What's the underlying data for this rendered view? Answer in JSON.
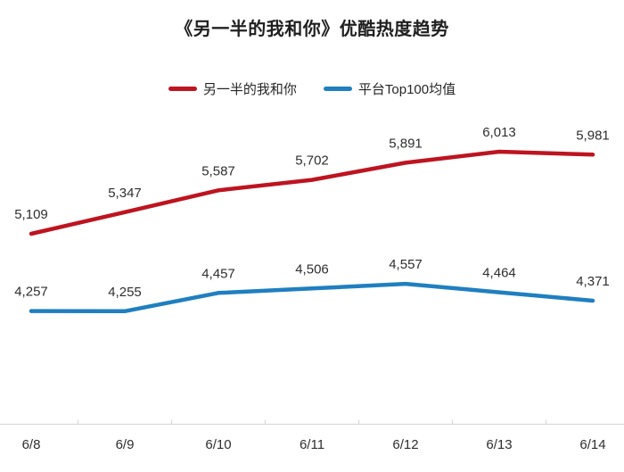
{
  "chart_data": {
    "type": "line",
    "title": "《另一半的我和你》优酷热度趋势",
    "categories": [
      "6/8",
      "6/9",
      "6/10",
      "6/11",
      "6/12",
      "6/13",
      "6/14"
    ],
    "series": [
      {
        "name": "另一半的我和你",
        "color": "#be1420",
        "values": [
          5109,
          5347,
          5587,
          5702,
          5891,
          6013,
          5981
        ],
        "labels": [
          "5,109",
          "5,347",
          "5,587",
          "5,702",
          "5,891",
          "6,013",
          "5,981"
        ]
      },
      {
        "name": "平台Top100均值",
        "color": "#1f7fc0",
        "values": [
          4257,
          4255,
          4457,
          4506,
          4557,
          4464,
          4371
        ],
        "labels": [
          "4,257",
          "4,255",
          "4,457",
          "4,506",
          "4,557",
          "4,464",
          "4,371"
        ]
      }
    ],
    "legend_position": "top",
    "grid": false,
    "background": "#ffffff",
    "axis": {
      "color": "#d9d9d9",
      "tick_color": "#d9d9d9"
    },
    "text_color": "#2e2e2e"
  }
}
